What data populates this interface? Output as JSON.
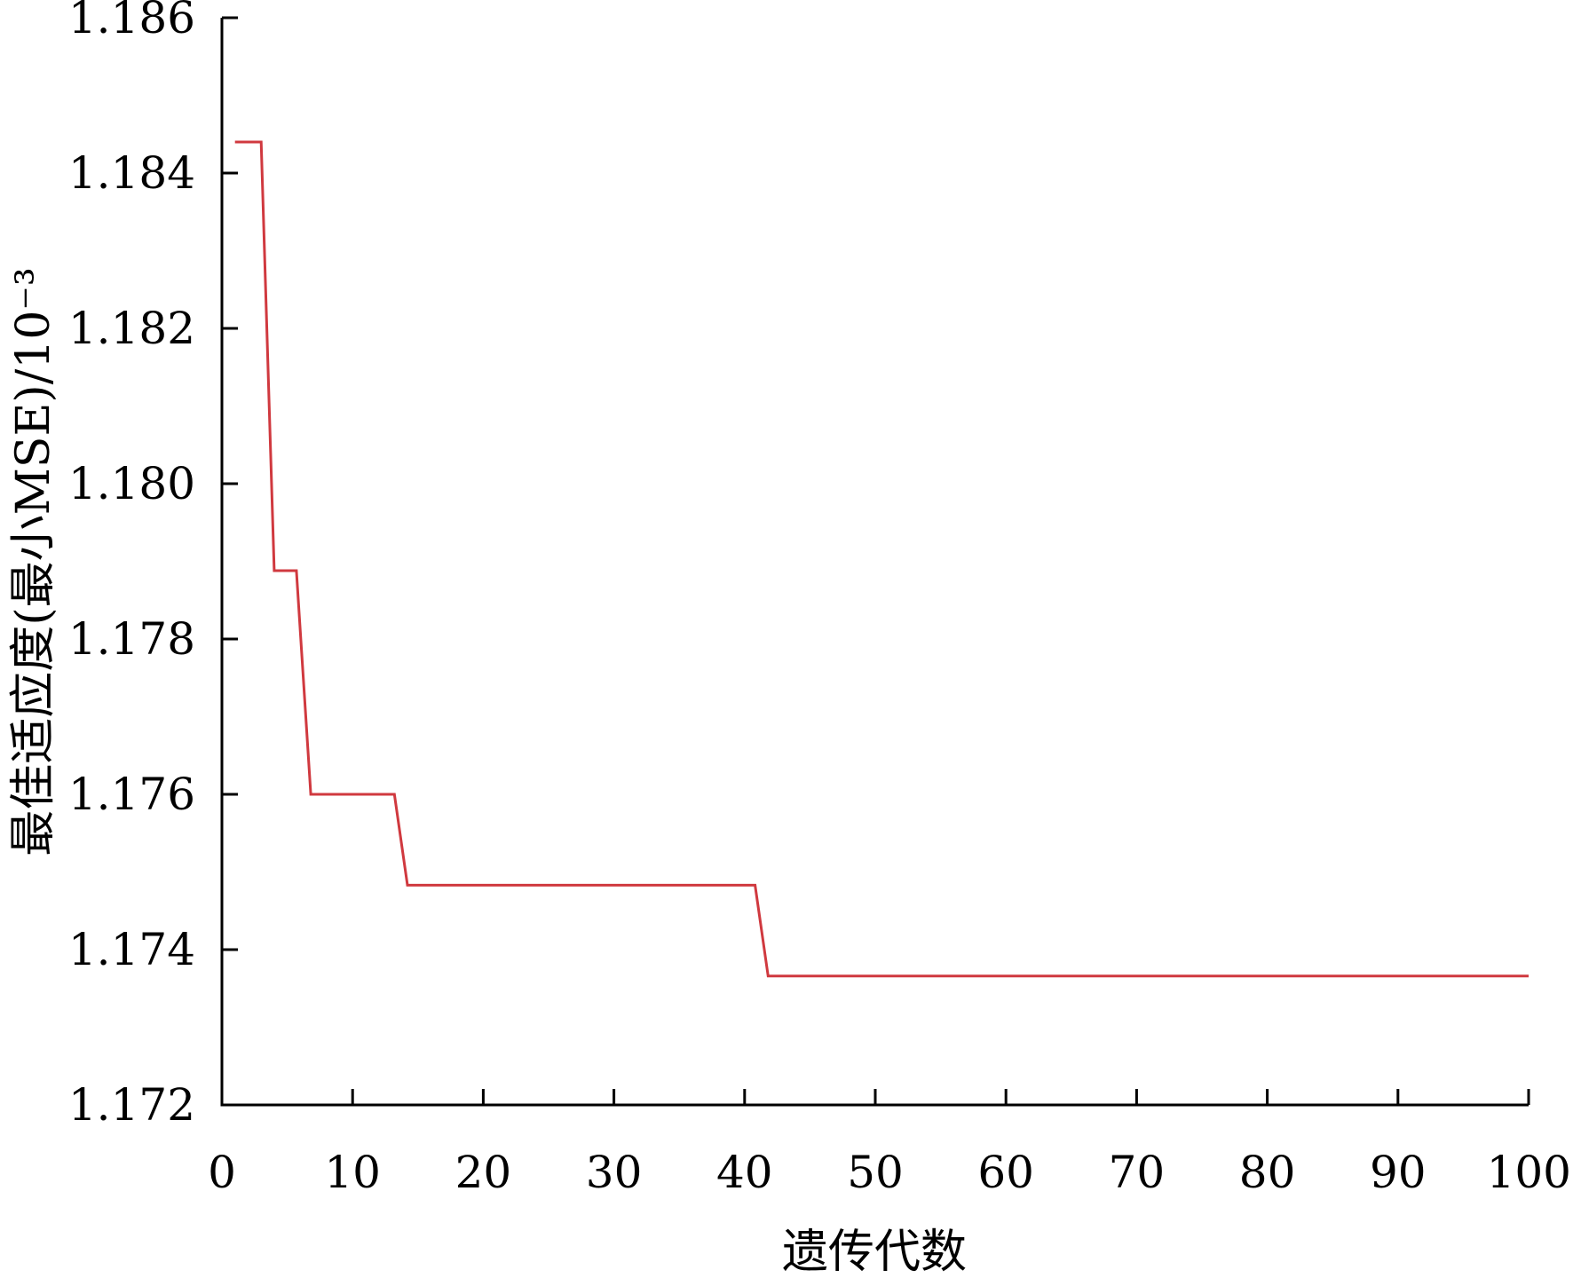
{
  "chart_data": {
    "type": "line",
    "title": "",
    "xlabel": "遗传代数",
    "ylabel": "最佳适应度(最小MSE)/10⁻³",
    "xlim": [
      0,
      100
    ],
    "ylim": [
      1.172,
      1.186
    ],
    "x_ticks": [
      "0",
      "10",
      "20",
      "30",
      "40",
      "50",
      "60",
      "70",
      "80",
      "90",
      "100"
    ],
    "y_ticks": [
      "1.172",
      "1.174",
      "1.176",
      "1.178",
      "1.180",
      "1.182",
      "1.184",
      "1.186"
    ],
    "line_color": "#d0393f",
    "series": [
      {
        "x": [
          1,
          3,
          4,
          5.7,
          6.8,
          13.2,
          14.2,
          40.8,
          41.8,
          100
        ],
        "y": [
          1.1844,
          1.1844,
          1.17888,
          1.17888,
          1.176,
          1.176,
          1.17483,
          1.17483,
          1.17366,
          1.17366
        ]
      }
    ]
  }
}
